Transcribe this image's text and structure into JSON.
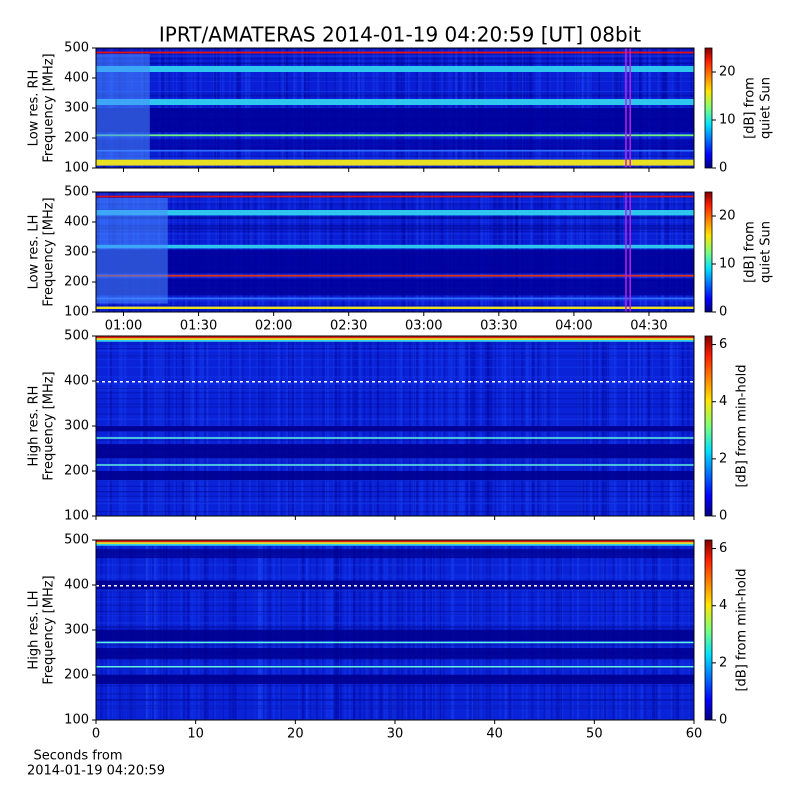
{
  "title": "IPRT/AMATERAS 2014-01-19 04:20:59 [UT]   08bit",
  "chart_data": [
    {
      "type": "heatmap",
      "ylabel": [
        "Low res. RH",
        "Frequency [MHz]"
      ],
      "ylim": [
        100,
        500
      ],
      "yticks": [
        100,
        200,
        300,
        400,
        500
      ],
      "xlim": [
        "00:49",
        "04:48"
      ],
      "xticks": [
        "01:00",
        "01:30",
        "02:00",
        "02:30",
        "03:00",
        "03:30",
        "04:00",
        "04:30"
      ],
      "show_xticklabels": false,
      "clim": [
        0,
        25
      ],
      "cticks": [
        0,
        10,
        20
      ],
      "clabel": [
        "[dB] from",
        "quiet Sun"
      ]
    },
    {
      "type": "heatmap",
      "ylabel": [
        "Low res. LH",
        "Frequency [MHz]"
      ],
      "ylim": [
        100,
        500
      ],
      "yticks": [
        100,
        200,
        300,
        400,
        500
      ],
      "xlim": [
        "00:49",
        "04:48"
      ],
      "xticks": [
        "01:00",
        "01:30",
        "02:00",
        "02:30",
        "03:00",
        "03:30",
        "04:00",
        "04:30"
      ],
      "show_xticklabels": true,
      "clim": [
        0,
        25
      ],
      "cticks": [
        0,
        10,
        20
      ],
      "clabel": [
        "[dB] from",
        "quiet Sun"
      ]
    },
    {
      "type": "heatmap",
      "ylabel": [
        "High res. RH",
        "Frequency [MHz]"
      ],
      "ylim": [
        100,
        500
      ],
      "yticks": [
        100,
        200,
        300,
        400,
        500
      ],
      "xlim": [
        0,
        60
      ],
      "xticks": [
        0,
        10,
        20,
        30,
        40,
        50,
        60
      ],
      "show_xticklabels": false,
      "clim": [
        0,
        6.3
      ],
      "cticks": [
        0,
        2,
        4,
        6
      ],
      "clabel": [
        "[dB] from min-hold"
      ]
    },
    {
      "type": "heatmap",
      "ylabel": [
        "High res. LH",
        "Frequency [MHz]"
      ],
      "ylim": [
        100,
        500
      ],
      "yticks": [
        100,
        200,
        300,
        400,
        500
      ],
      "xlim": [
        0,
        60
      ],
      "xticks": [
        0,
        10,
        20,
        30,
        40,
        50,
        60
      ],
      "show_xticklabels": true,
      "xlabel": [
        "Seconds from",
        "2014-01-19 04:20:59"
      ],
      "clim": [
        0,
        6.3
      ],
      "cticks": [
        0,
        2,
        4,
        6
      ],
      "clabel": [
        "[dB] from min-hold"
      ]
    }
  ]
}
